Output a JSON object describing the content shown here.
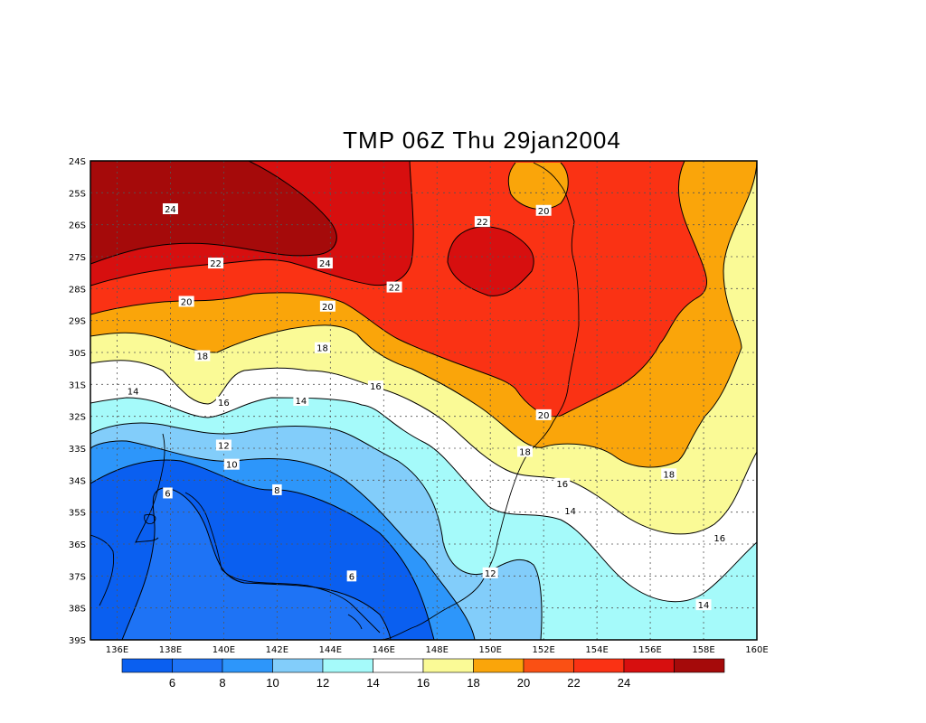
{
  "title": "TMP 06Z Thu 29jan2004",
  "map": {
    "lon_range": [
      135,
      160
    ],
    "lat_range": [
      -39,
      -24
    ],
    "grid": true,
    "lon_ticks": [
      "136E",
      "138E",
      "140E",
      "142E",
      "144E",
      "146E",
      "148E",
      "150E",
      "152E",
      "154E",
      "156E",
      "158E",
      "160E"
    ],
    "lat_ticks": [
      "24S",
      "25S",
      "26S",
      "27S",
      "28S",
      "29S",
      "30S",
      "31S",
      "32S",
      "33S",
      "34S",
      "35S",
      "36S",
      "37S",
      "38S",
      "39S"
    ]
  },
  "colorbar": {
    "colors": [
      "#0a5ff0",
      "#1e73f5",
      "#2d96fa",
      "#82cdfa",
      "#a5fafa",
      "#ffffff",
      "#fafa96",
      "#faa50a",
      "#fa5014",
      "#fa3214",
      "#d70f0f",
      "#a50a0a"
    ],
    "labels": [
      "6",
      "8",
      "10",
      "12",
      "14",
      "16",
      "18",
      "20",
      "22",
      "24"
    ]
  },
  "contour_labels": [
    {
      "text": "24",
      "lon": 138.0,
      "lat": -25.5
    },
    {
      "text": "22",
      "lon": 139.7,
      "lat": -27.2
    },
    {
      "text": "24",
      "lon": 143.8,
      "lat": -27.2
    },
    {
      "text": "22",
      "lon": 146.4,
      "lat": -27.95
    },
    {
      "text": "22",
      "lon": 149.7,
      "lat": -25.9
    },
    {
      "text": "20",
      "lon": 152.0,
      "lat": -25.55
    },
    {
      "text": "20",
      "lon": 138.6,
      "lat": -28.4
    },
    {
      "text": "20",
      "lon": 143.9,
      "lat": -28.55
    },
    {
      "text": "18",
      "lon": 139.2,
      "lat": -30.1
    },
    {
      "text": "18",
      "lon": 143.7,
      "lat": -29.85
    },
    {
      "text": "16",
      "lon": 140.0,
      "lat": -31.55
    },
    {
      "text": "16",
      "lon": 145.7,
      "lat": -31.05
    },
    {
      "text": "14",
      "lon": 136.6,
      "lat": -31.2
    },
    {
      "text": "14",
      "lon": 142.9,
      "lat": -31.5
    },
    {
      "text": "12",
      "lon": 140.0,
      "lat": -32.9
    },
    {
      "text": "10",
      "lon": 140.3,
      "lat": -33.5
    },
    {
      "text": "8",
      "lon": 142.0,
      "lat": -34.3
    },
    {
      "text": "6",
      "lon": 137.9,
      "lat": -34.4
    },
    {
      "text": "6",
      "lon": 144.8,
      "lat": -37.0
    },
    {
      "text": "20",
      "lon": 152.0,
      "lat": -31.95
    },
    {
      "text": "18",
      "lon": 151.3,
      "lat": -33.1
    },
    {
      "text": "16",
      "lon": 152.7,
      "lat": -34.1
    },
    {
      "text": "18",
      "lon": 156.7,
      "lat": -33.8
    },
    {
      "text": "14",
      "lon": 153.0,
      "lat": -34.95
    },
    {
      "text": "16",
      "lon": 158.6,
      "lat": -35.8
    },
    {
      "text": "12",
      "lon": 150.0,
      "lat": -36.9
    },
    {
      "text": "14",
      "lon": 158.0,
      "lat": -37.9
    }
  ]
}
